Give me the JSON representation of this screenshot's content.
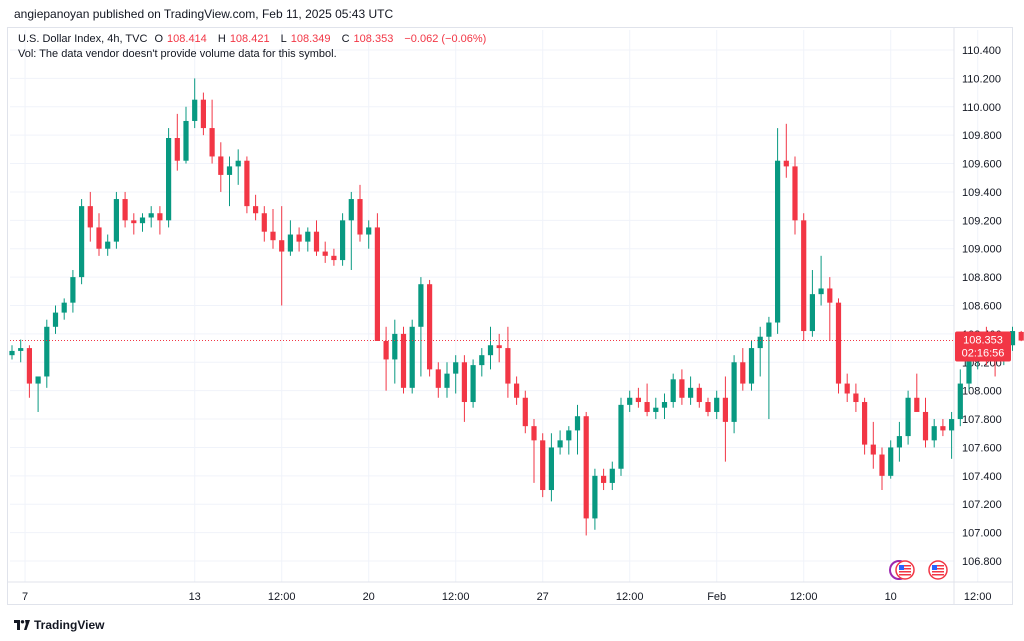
{
  "header": {
    "publisher": "angiepanoyan published on TradingView.com, Feb 11, 2025 05:43 UTC"
  },
  "legend": {
    "symbol": "U.S. Dollar Index, 4h, TVC",
    "open_label": "O",
    "open": "108.414",
    "high_label": "H",
    "high": "108.421",
    "low_label": "L",
    "low": "108.349",
    "close_label": "C",
    "close": "108.353",
    "change": "−0.062 (−0.06%)",
    "vol_note": "Vol: The data vendor doesn't provide volume data for this symbol."
  },
  "footer": {
    "brand": "TradingView"
  },
  "colors": {
    "up": "#089981",
    "down": "#f23645",
    "grid": "#f0f3fa",
    "price_line": "#f23645"
  },
  "chart_data": {
    "type": "candlestick",
    "title": "U.S. Dollar Index, 4h, TVC",
    "ylim": [
      106.7,
      110.5
    ],
    "y_ticks": [
      "106.800",
      "107.000",
      "107.200",
      "107.400",
      "107.600",
      "107.800",
      "108.000",
      "108.200",
      "108.400",
      "108.600",
      "108.800",
      "109.000",
      "109.200",
      "109.400",
      "109.600",
      "109.800",
      "110.000",
      "110.200",
      "110.400"
    ],
    "x_ticks": [
      "7",
      "13",
      "12:00",
      "20",
      "12:00",
      "27",
      "12:00",
      "Feb",
      "12:00",
      "10",
      "12:00"
    ],
    "x_tick_bars": [
      1.5,
      21,
      31,
      41,
      51,
      61,
      71,
      81,
      91,
      101,
      111
    ],
    "last_price": "108.353",
    "countdown": "02:16:56",
    "bars": [
      [
        108.25,
        108.32,
        108.22,
        108.28
      ],
      [
        108.28,
        108.36,
        108.2,
        108.3
      ],
      [
        108.3,
        108.32,
        107.95,
        108.05
      ],
      [
        108.05,
        108.08,
        107.85,
        108.1
      ],
      [
        108.1,
        108.5,
        108.02,
        108.45
      ],
      [
        108.45,
        108.6,
        108.4,
        108.55
      ],
      [
        108.55,
        108.65,
        108.5,
        108.62
      ],
      [
        108.62,
        108.85,
        108.55,
        108.8
      ],
      [
        108.8,
        109.35,
        108.75,
        109.3
      ],
      [
        109.3,
        109.4,
        109.05,
        109.15
      ],
      [
        109.15,
        109.25,
        108.95,
        109.0
      ],
      [
        109.0,
        109.1,
        108.95,
        109.05
      ],
      [
        109.05,
        109.4,
        109.0,
        109.35
      ],
      [
        109.35,
        109.4,
        109.15,
        109.2
      ],
      [
        109.2,
        109.25,
        109.1,
        109.18
      ],
      [
        109.18,
        109.25,
        109.12,
        109.22
      ],
      [
        109.22,
        109.3,
        109.15,
        109.25
      ],
      [
        109.25,
        109.3,
        109.1,
        109.2
      ],
      [
        109.2,
        109.85,
        109.15,
        109.78
      ],
      [
        109.78,
        109.95,
        109.55,
        109.62
      ],
      [
        109.62,
        110.0,
        109.6,
        109.9
      ],
      [
        109.9,
        110.2,
        109.85,
        110.05
      ],
      [
        110.05,
        110.1,
        109.8,
        109.85
      ],
      [
        109.85,
        110.05,
        109.6,
        109.65
      ],
      [
        109.65,
        109.75,
        109.4,
        109.52
      ],
      [
        109.52,
        109.65,
        109.3,
        109.58
      ],
      [
        109.58,
        109.7,
        109.45,
        109.62
      ],
      [
        109.62,
        109.65,
        109.25,
        109.3
      ],
      [
        109.3,
        109.38,
        109.2,
        109.25
      ],
      [
        109.25,
        109.3,
        109.05,
        109.12
      ],
      [
        109.12,
        109.28,
        109.0,
        109.06
      ],
      [
        109.06,
        109.3,
        108.6,
        108.98
      ],
      [
        108.98,
        109.2,
        108.95,
        109.1
      ],
      [
        109.1,
        109.15,
        108.98,
        109.05
      ],
      [
        109.05,
        109.15,
        108.98,
        109.12
      ],
      [
        109.12,
        109.2,
        108.95,
        108.98
      ],
      [
        108.98,
        109.05,
        108.9,
        108.95
      ],
      [
        108.95,
        109.0,
        108.88,
        108.92
      ],
      [
        108.92,
        109.25,
        108.88,
        109.2
      ],
      [
        109.2,
        109.4,
        108.85,
        109.35
      ],
      [
        109.35,
        109.45,
        109.05,
        109.1
      ],
      [
        109.1,
        109.2,
        109.0,
        109.15
      ],
      [
        109.15,
        109.25,
        108.5,
        108.35
      ],
      [
        108.35,
        108.45,
        108.0,
        108.22
      ],
      [
        108.22,
        108.5,
        108.05,
        108.4
      ],
      [
        108.4,
        108.45,
        107.98,
        108.02
      ],
      [
        108.02,
        108.5,
        107.98,
        108.45
      ],
      [
        108.45,
        108.8,
        108.1,
        108.75
      ],
      [
        108.75,
        108.78,
        108.1,
        108.15
      ],
      [
        108.15,
        108.2,
        107.95,
        108.02
      ],
      [
        108.02,
        108.2,
        107.95,
        108.12
      ],
      [
        108.12,
        108.25,
        107.98,
        108.2
      ],
      [
        108.2,
        108.25,
        107.78,
        107.92
      ],
      [
        107.92,
        108.22,
        107.88,
        108.18
      ],
      [
        108.18,
        108.3,
        108.1,
        108.25
      ],
      [
        108.25,
        108.45,
        108.15,
        108.32
      ],
      [
        108.32,
        108.4,
        108.2,
        108.3
      ],
      [
        108.3,
        108.45,
        107.95,
        108.05
      ],
      [
        108.05,
        108.1,
        107.9,
        107.95
      ],
      [
        107.95,
        108.0,
        107.7,
        107.75
      ],
      [
        107.75,
        107.8,
        107.35,
        107.65
      ],
      [
        107.65,
        107.7,
        107.25,
        107.3
      ],
      [
        107.3,
        107.7,
        107.22,
        107.6
      ],
      [
        107.6,
        107.72,
        107.55,
        107.65
      ],
      [
        107.65,
        107.75,
        107.55,
        107.72
      ],
      [
        107.72,
        107.9,
        107.55,
        107.82
      ],
      [
        107.82,
        107.85,
        106.98,
        107.1
      ],
      [
        107.1,
        107.45,
        107.02,
        107.4
      ],
      [
        107.4,
        107.45,
        107.3,
        107.35
      ],
      [
        107.35,
        107.5,
        107.3,
        107.45
      ],
      [
        107.45,
        107.95,
        107.4,
        107.9
      ],
      [
        107.9,
        108.0,
        107.85,
        107.95
      ],
      [
        107.95,
        108.02,
        107.88,
        107.92
      ],
      [
        107.92,
        108.05,
        107.82,
        107.85
      ],
      [
        107.85,
        107.95,
        107.8,
        107.88
      ],
      [
        107.88,
        107.98,
        107.8,
        107.92
      ],
      [
        107.92,
        108.12,
        107.88,
        108.08
      ],
      [
        108.08,
        108.15,
        107.9,
        107.95
      ],
      [
        107.95,
        108.1,
        107.9,
        108.02
      ],
      [
        108.02,
        108.05,
        107.88,
        107.92
      ],
      [
        107.92,
        107.95,
        107.82,
        107.85
      ],
      [
        107.85,
        108.0,
        107.8,
        107.95
      ],
      [
        107.95,
        108.1,
        107.5,
        107.78
      ],
      [
        107.78,
        108.25,
        107.7,
        108.2
      ],
      [
        108.2,
        108.3,
        108.0,
        108.05
      ],
      [
        108.05,
        108.35,
        108.0,
        108.3
      ],
      [
        108.3,
        108.45,
        108.1,
        108.38
      ],
      [
        108.38,
        108.52,
        107.8,
        108.48
      ],
      [
        108.48,
        109.85,
        108.4,
        109.62
      ],
      [
        109.62,
        109.88,
        109.5,
        109.58
      ],
      [
        109.58,
        109.65,
        109.1,
        109.2
      ],
      [
        109.2,
        109.25,
        108.35,
        108.42
      ],
      [
        108.42,
        108.85,
        108.38,
        108.68
      ],
      [
        108.68,
        108.95,
        108.6,
        108.72
      ],
      [
        108.72,
        108.8,
        108.35,
        108.62
      ],
      [
        108.62,
        108.65,
        107.98,
        108.05
      ],
      [
        108.05,
        108.12,
        107.92,
        107.98
      ],
      [
        107.98,
        108.05,
        107.85,
        107.92
      ],
      [
        107.92,
        107.95,
        107.55,
        107.62
      ],
      [
        107.62,
        107.78,
        107.45,
        107.55
      ],
      [
        107.55,
        107.6,
        107.3,
        107.4
      ],
      [
        107.4,
        107.65,
        107.38,
        107.6
      ],
      [
        107.6,
        107.78,
        107.5,
        107.68
      ],
      [
        107.68,
        108.0,
        107.62,
        107.95
      ],
      [
        107.95,
        108.12,
        107.85,
        107.85
      ],
      [
        107.85,
        107.95,
        107.6,
        107.65
      ],
      [
        107.65,
        107.8,
        107.6,
        107.75
      ],
      [
        107.75,
        107.8,
        107.68,
        107.72
      ],
      [
        107.72,
        107.85,
        107.52,
        107.8
      ],
      [
        107.8,
        108.15,
        107.75,
        108.05
      ],
      [
        108.05,
        108.35,
        108.0,
        108.3
      ],
      [
        108.3,
        108.42,
        108.15,
        108.4
      ],
      [
        108.4,
        108.45,
        108.18,
        108.25
      ],
      [
        108.25,
        108.3,
        108.1,
        108.22
      ],
      [
        108.22,
        108.38,
        108.18,
        108.32
      ],
      [
        108.32,
        108.45,
        108.28,
        108.42
      ],
      [
        108.414,
        108.421,
        108.349,
        108.353
      ]
    ]
  }
}
